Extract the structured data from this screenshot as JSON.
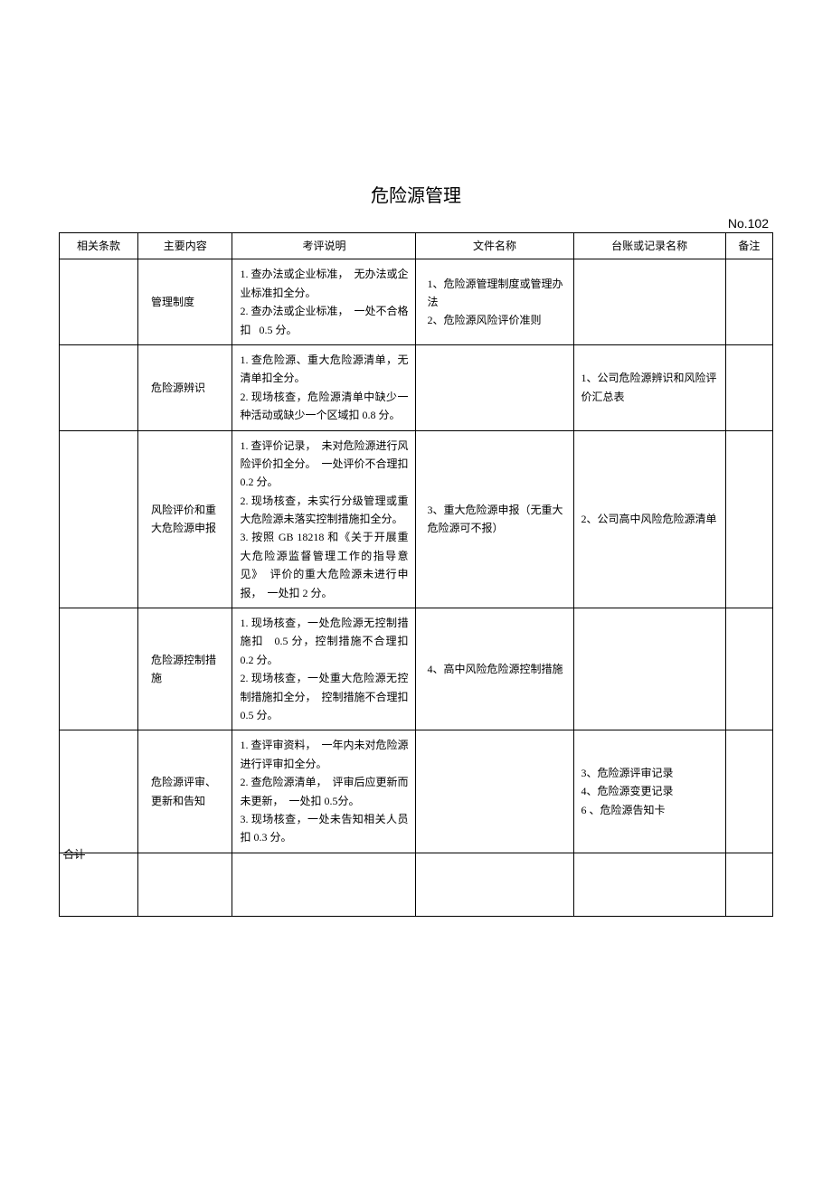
{
  "title": "危险源管理",
  "doc_number": "No.102",
  "headers": {
    "clause": "相关条款",
    "content": "主要内容",
    "evaluation": "考评说明",
    "file": "文件名称",
    "ledger": "台账或记录名称",
    "note": "备注"
  },
  "rows": [
    {
      "content": "管理制度",
      "evaluation": "1. 查办法或企业标准，  无办法或企业标准扣全分。\n2. 查办法或企业标准，  一处不合格扣   0.5 分。",
      "file": "1、危险源管理制度或管理办法\n2、危险源风险评价准则",
      "ledger": ""
    },
    {
      "content": "危险源辨识",
      "evaluation": "1. 查危险源、重大危险源清单，无清单扣全分。\n2. 现场核查，危险源清单中缺少一种活动或缺少一个区域扣 0.8 分。",
      "file": "",
      "ledger": "1、公司危险源辨识和风险评价汇总表"
    },
    {
      "content": "风险评价和重大危险源申报",
      "evaluation": "1. 查评价记录，  未对危险源进行风险评价扣全分。  一处评价不合理扣   0.2 分。\n2. 现场核查，未实行分级管理或重大危险源未落实控制措施扣全分。\n3. 按照 GB 18218 和《关于开展重大危险源监督管理工作的指导意见》  评价的重大危险源未进行申报，  一处扣 2 分。",
      "file": "3、重大危险源申报（无重大危险源可不报）",
      "ledger": "2、公司高中风险危险源清单"
    },
    {
      "content": "危险源控制措施",
      "evaluation": "1. 现场核查，一处危险源无控制措施扣   0.5 分，控制措施不合理扣    0.2 分。\n2. 现场核查，一处重大危险源无控制措施扣全分，  控制措施不合理扣 0.5 分。",
      "file": "4、高中风险危险源控制措施",
      "ledger": ""
    },
    {
      "content": "危险源评审、  更新和告知",
      "evaluation": "1. 查评审资料，  一年内未对危险源进行评审扣全分。\n2. 查危险源清单，  评审后应更新而未更新，  一处扣 0.5分。\n3. 现场核查，一处未告知相关人员扣 0.3 分。",
      "file": "",
      "ledger": "3、危险源评审记录\n4、危险源变更记录\n6 、危险源告知卡"
    }
  ],
  "total_label": "合计"
}
